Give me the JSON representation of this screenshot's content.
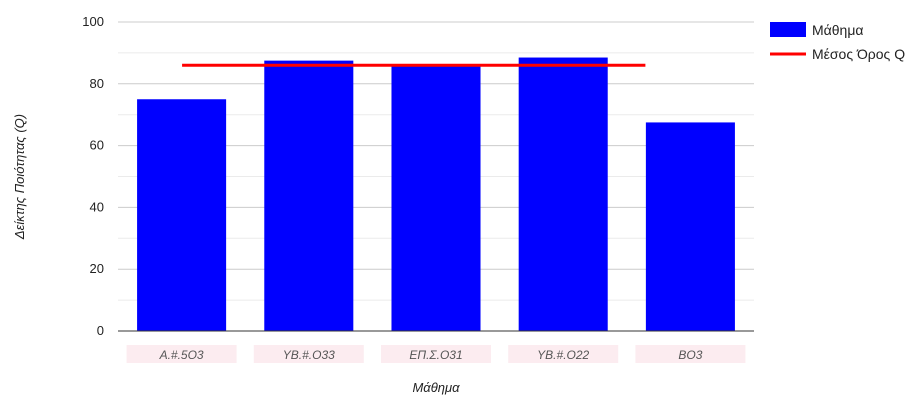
{
  "chart_data": {
    "type": "bar",
    "categories": [
      "Α.#.5Ο3",
      "ΥΒ.#.Ο33",
      "ΕΠ.Σ.Ο31",
      "ΥΒ.#.Ο22",
      "ΒΟ3"
    ],
    "series": [
      {
        "name": "Μάθημα",
        "type": "bar",
        "values": [
          75,
          87.5,
          86,
          88.5,
          67.5
        ],
        "color": "#0000ff"
      },
      {
        "name": "Μέσος Όρος Q",
        "type": "line",
        "value": 86,
        "color": "#ff0000"
      }
    ],
    "xlabel": "Μάθημα",
    "ylabel": "Δείκτης Ποιότητας (Q)",
    "ylim": [
      0,
      100
    ],
    "yticks": [
      0,
      20,
      40,
      60,
      80,
      100
    ],
    "grid": true,
    "legend_position": "top-right",
    "category_labels_obscured": true
  }
}
